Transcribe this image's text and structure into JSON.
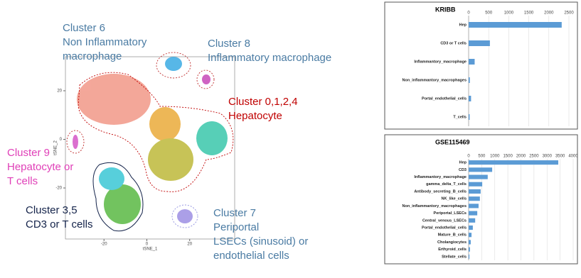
{
  "chart_data": [
    {
      "type": "scatter",
      "xlabel": "tSNE_1",
      "ylabel": "tSNE_2",
      "xlim": [
        -38,
        41
      ],
      "ylim": [
        -41,
        34
      ],
      "xticks": [
        -20,
        0,
        20
      ],
      "yticks": [
        20,
        0,
        -20
      ],
      "annotations": [
        {
          "lines": [
            "Cluster 6",
            "Non Inflammatory",
            "macrophage"
          ],
          "color": "#4a7ba3"
        },
        {
          "lines": [
            "Cluster 8",
            "Inflammatory macrophage"
          ],
          "color": "#4a7ba3"
        },
        {
          "lines": [
            "Cluster 0,1,2,4",
            "Hepatocyte"
          ],
          "color": "#c00000"
        },
        {
          "lines": [
            "Cluster 9",
            "Hepatocyte or",
            "T cells"
          ],
          "color": "#e040b8"
        },
        {
          "lines": [
            "Cluster 3,5",
            "CD3 or T cells"
          ],
          "color": "#14234a"
        },
        {
          "lines": [
            "Cluster 7",
            "Periportal",
            "LSECs (sinusoid) or",
            "endothelial cells"
          ],
          "color": "#4a7ba3"
        }
      ]
    },
    {
      "type": "hbar",
      "title": "KRIBB",
      "color": "#5b9bd5",
      "categories": [
        "Hep",
        "CD3 or T cells",
        "Inflammantory_macrophage",
        "Non_inflammantory_macrophages",
        "Portal_endothelial_cells",
        "T_cells"
      ],
      "values": [
        2320,
        530,
        150,
        30,
        60,
        25
      ],
      "xlim": [
        0,
        2500
      ],
      "xticks": [
        0,
        500,
        1000,
        1500,
        2000,
        2500
      ],
      "grid": true
    },
    {
      "type": "hbar",
      "title": "GSE115469",
      "color": "#5b9bd5",
      "categories": [
        "Hep",
        "CD3",
        "Inflammantory_macrophage",
        "gamma_delta_T_cells",
        "Antibody_secreting_B_cells",
        "NK_like_cells",
        "Non_inflammantory_macrophages",
        "Periportal_LSECs",
        "Central_venous_LSECs",
        "Portal_endothelial_cells",
        "Mature_B_cells",
        "Cholangiocytes",
        "Erthyroid_cells",
        "Stellate_cells"
      ],
      "values": [
        3430,
        900,
        730,
        520,
        460,
        430,
        380,
        330,
        250,
        160,
        110,
        80,
        50,
        30
      ],
      "xlim": [
        0,
        4000
      ],
      "xticks": [
        0,
        500,
        1000,
        1500,
        2000,
        2500,
        3000,
        3500,
        4000
      ],
      "grid": true
    }
  ]
}
